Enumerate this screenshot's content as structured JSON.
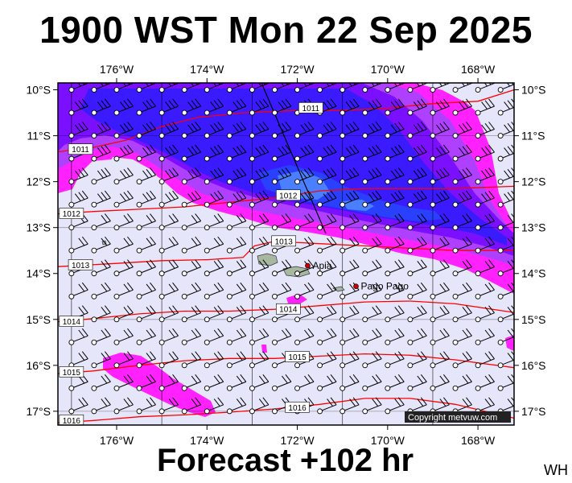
{
  "title": "1900 WST Mon 22 Sep 2025",
  "footer": "Forecast +102 hr",
  "initials": "WH",
  "copyright": "Copyright metvuw.com",
  "colors": {
    "background_calm": "#e6e6fa",
    "magenta": "#ff00ff",
    "purple": "#a040ff",
    "violet": "#6a00ff",
    "blue": "#3c1cff",
    "deep_blue": "#2030ff",
    "light_blue": "#3a6cff",
    "isobar": "#ff0000",
    "land": "#a8b8a0"
  },
  "axes": {
    "lon_ticks": [
      "176°W",
      "174°W",
      "172°W",
      "170°W",
      "168°W"
    ],
    "lat_ticks": [
      "10°S",
      "11°S",
      "12°S",
      "13°S",
      "14°S",
      "15°S",
      "16°S",
      "17°S"
    ]
  },
  "places": [
    {
      "name": "Apia",
      "lon": -171.77,
      "lat": -13.83
    },
    {
      "name": "Pago Pago",
      "lon": -170.7,
      "lat": -14.28
    }
  ],
  "isobars": [
    {
      "label": "1011",
      "points": [
        [
          -177.3,
          -11.35
        ],
        [
          -176.5,
          -11.25
        ],
        [
          -175.8,
          -11.1
        ],
        [
          -175,
          -10.8
        ],
        [
          -174.2,
          -10.6
        ],
        [
          -173.2,
          -10.5
        ],
        [
          -172,
          -10.45
        ],
        [
          -171,
          -10.45
        ],
        [
          -170,
          -10.4
        ],
        [
          -169,
          -10.3
        ],
        [
          -168,
          -10.25
        ],
        [
          -167.2,
          -10.0
        ]
      ],
      "labels": [
        {
          "text": "1011",
          "lon": -171.7,
          "lat": -10.4
        },
        {
          "text": "1011",
          "lon": -176.8,
          "lat": -11.3
        }
      ]
    },
    {
      "label": "1012",
      "points": [
        [
          -177.3,
          -12.7
        ],
        [
          -176.5,
          -12.65
        ],
        [
          -175.5,
          -12.6
        ],
        [
          -174.5,
          -12.55
        ],
        [
          -173.5,
          -12.45
        ],
        [
          -172.5,
          -12.35
        ],
        [
          -171.5,
          -12.2
        ],
        [
          -170.5,
          -12.15
        ],
        [
          -169.5,
          -12.15
        ],
        [
          -168.5,
          -12.15
        ],
        [
          -167.2,
          -12.1
        ]
      ],
      "labels": [
        {
          "text": "1012",
          "lon": -172.2,
          "lat": -12.3
        },
        {
          "text": "1012",
          "lon": -177.0,
          "lat": -12.7
        }
      ]
    },
    {
      "label": "1013",
      "points": [
        [
          -177.3,
          -13.85
        ],
        [
          -176,
          -13.78
        ],
        [
          -175,
          -13.72
        ],
        [
          -174,
          -13.7
        ],
        [
          -173.2,
          -13.65
        ],
        [
          -172.95,
          -13.4
        ],
        [
          -172.5,
          -13.3
        ],
        [
          -171.5,
          -13.35
        ],
        [
          -170.5,
          -13.4
        ],
        [
          -169.5,
          -13.45
        ],
        [
          -168.5,
          -13.5
        ],
        [
          -167.2,
          -13.5
        ]
      ],
      "labels": [
        {
          "text": "1013",
          "lon": -172.3,
          "lat": -13.3
        },
        {
          "text": "1013",
          "lon": -176.8,
          "lat": -13.82
        }
      ]
    },
    {
      "label": "1014",
      "points": [
        [
          -177.3,
          -15.05
        ],
        [
          -176.5,
          -14.98
        ],
        [
          -175.5,
          -14.88
        ],
        [
          -174.5,
          -14.82
        ],
        [
          -173.5,
          -14.82
        ],
        [
          -172.5,
          -14.78
        ],
        [
          -171.5,
          -14.7
        ],
        [
          -170.5,
          -14.62
        ],
        [
          -169.5,
          -14.6
        ],
        [
          -168.5,
          -14.66
        ],
        [
          -167.2,
          -14.85
        ]
      ],
      "labels": [
        {
          "text": "1014",
          "lon": -172.2,
          "lat": -14.78
        },
        {
          "text": "1014",
          "lon": -177.0,
          "lat": -15.05
        }
      ]
    },
    {
      "label": "1015",
      "points": [
        [
          -177.3,
          -16.18
        ],
        [
          -176.5,
          -16.12
        ],
        [
          -175.5,
          -16.0
        ],
        [
          -174.5,
          -15.9
        ],
        [
          -173.5,
          -15.85
        ],
        [
          -172.5,
          -15.85
        ],
        [
          -171.5,
          -15.8
        ],
        [
          -170.5,
          -15.75
        ],
        [
          -169.5,
          -15.78
        ],
        [
          -168.5,
          -15.88
        ],
        [
          -167.2,
          -16.05
        ]
      ],
      "labels": [
        {
          "text": "1015",
          "lon": -172.0,
          "lat": -15.82
        },
        {
          "text": "1015",
          "lon": -177.0,
          "lat": -16.15
        }
      ]
    },
    {
      "label": "1016",
      "points": [
        [
          -177.3,
          -17.25
        ],
        [
          -176.5,
          -17.2
        ],
        [
          -175.5,
          -17.12
        ],
        [
          -174.5,
          -17.08
        ],
        [
          -173.5,
          -17.02
        ],
        [
          -172.5,
          -16.95
        ],
        [
          -171.5,
          -16.85
        ],
        [
          -170.5,
          -16.72
        ],
        [
          -169.5,
          -16.72
        ],
        [
          -168.5,
          -16.85
        ],
        [
          -167.5,
          -17.08
        ],
        [
          -167.2,
          -17.15
        ]
      ],
      "labels": [
        {
          "text": "1016",
          "lon": -172.0,
          "lat": -16.92
        },
        {
          "text": "1016",
          "lon": -177.0,
          "lat": -17.2
        }
      ]
    }
  ]
}
